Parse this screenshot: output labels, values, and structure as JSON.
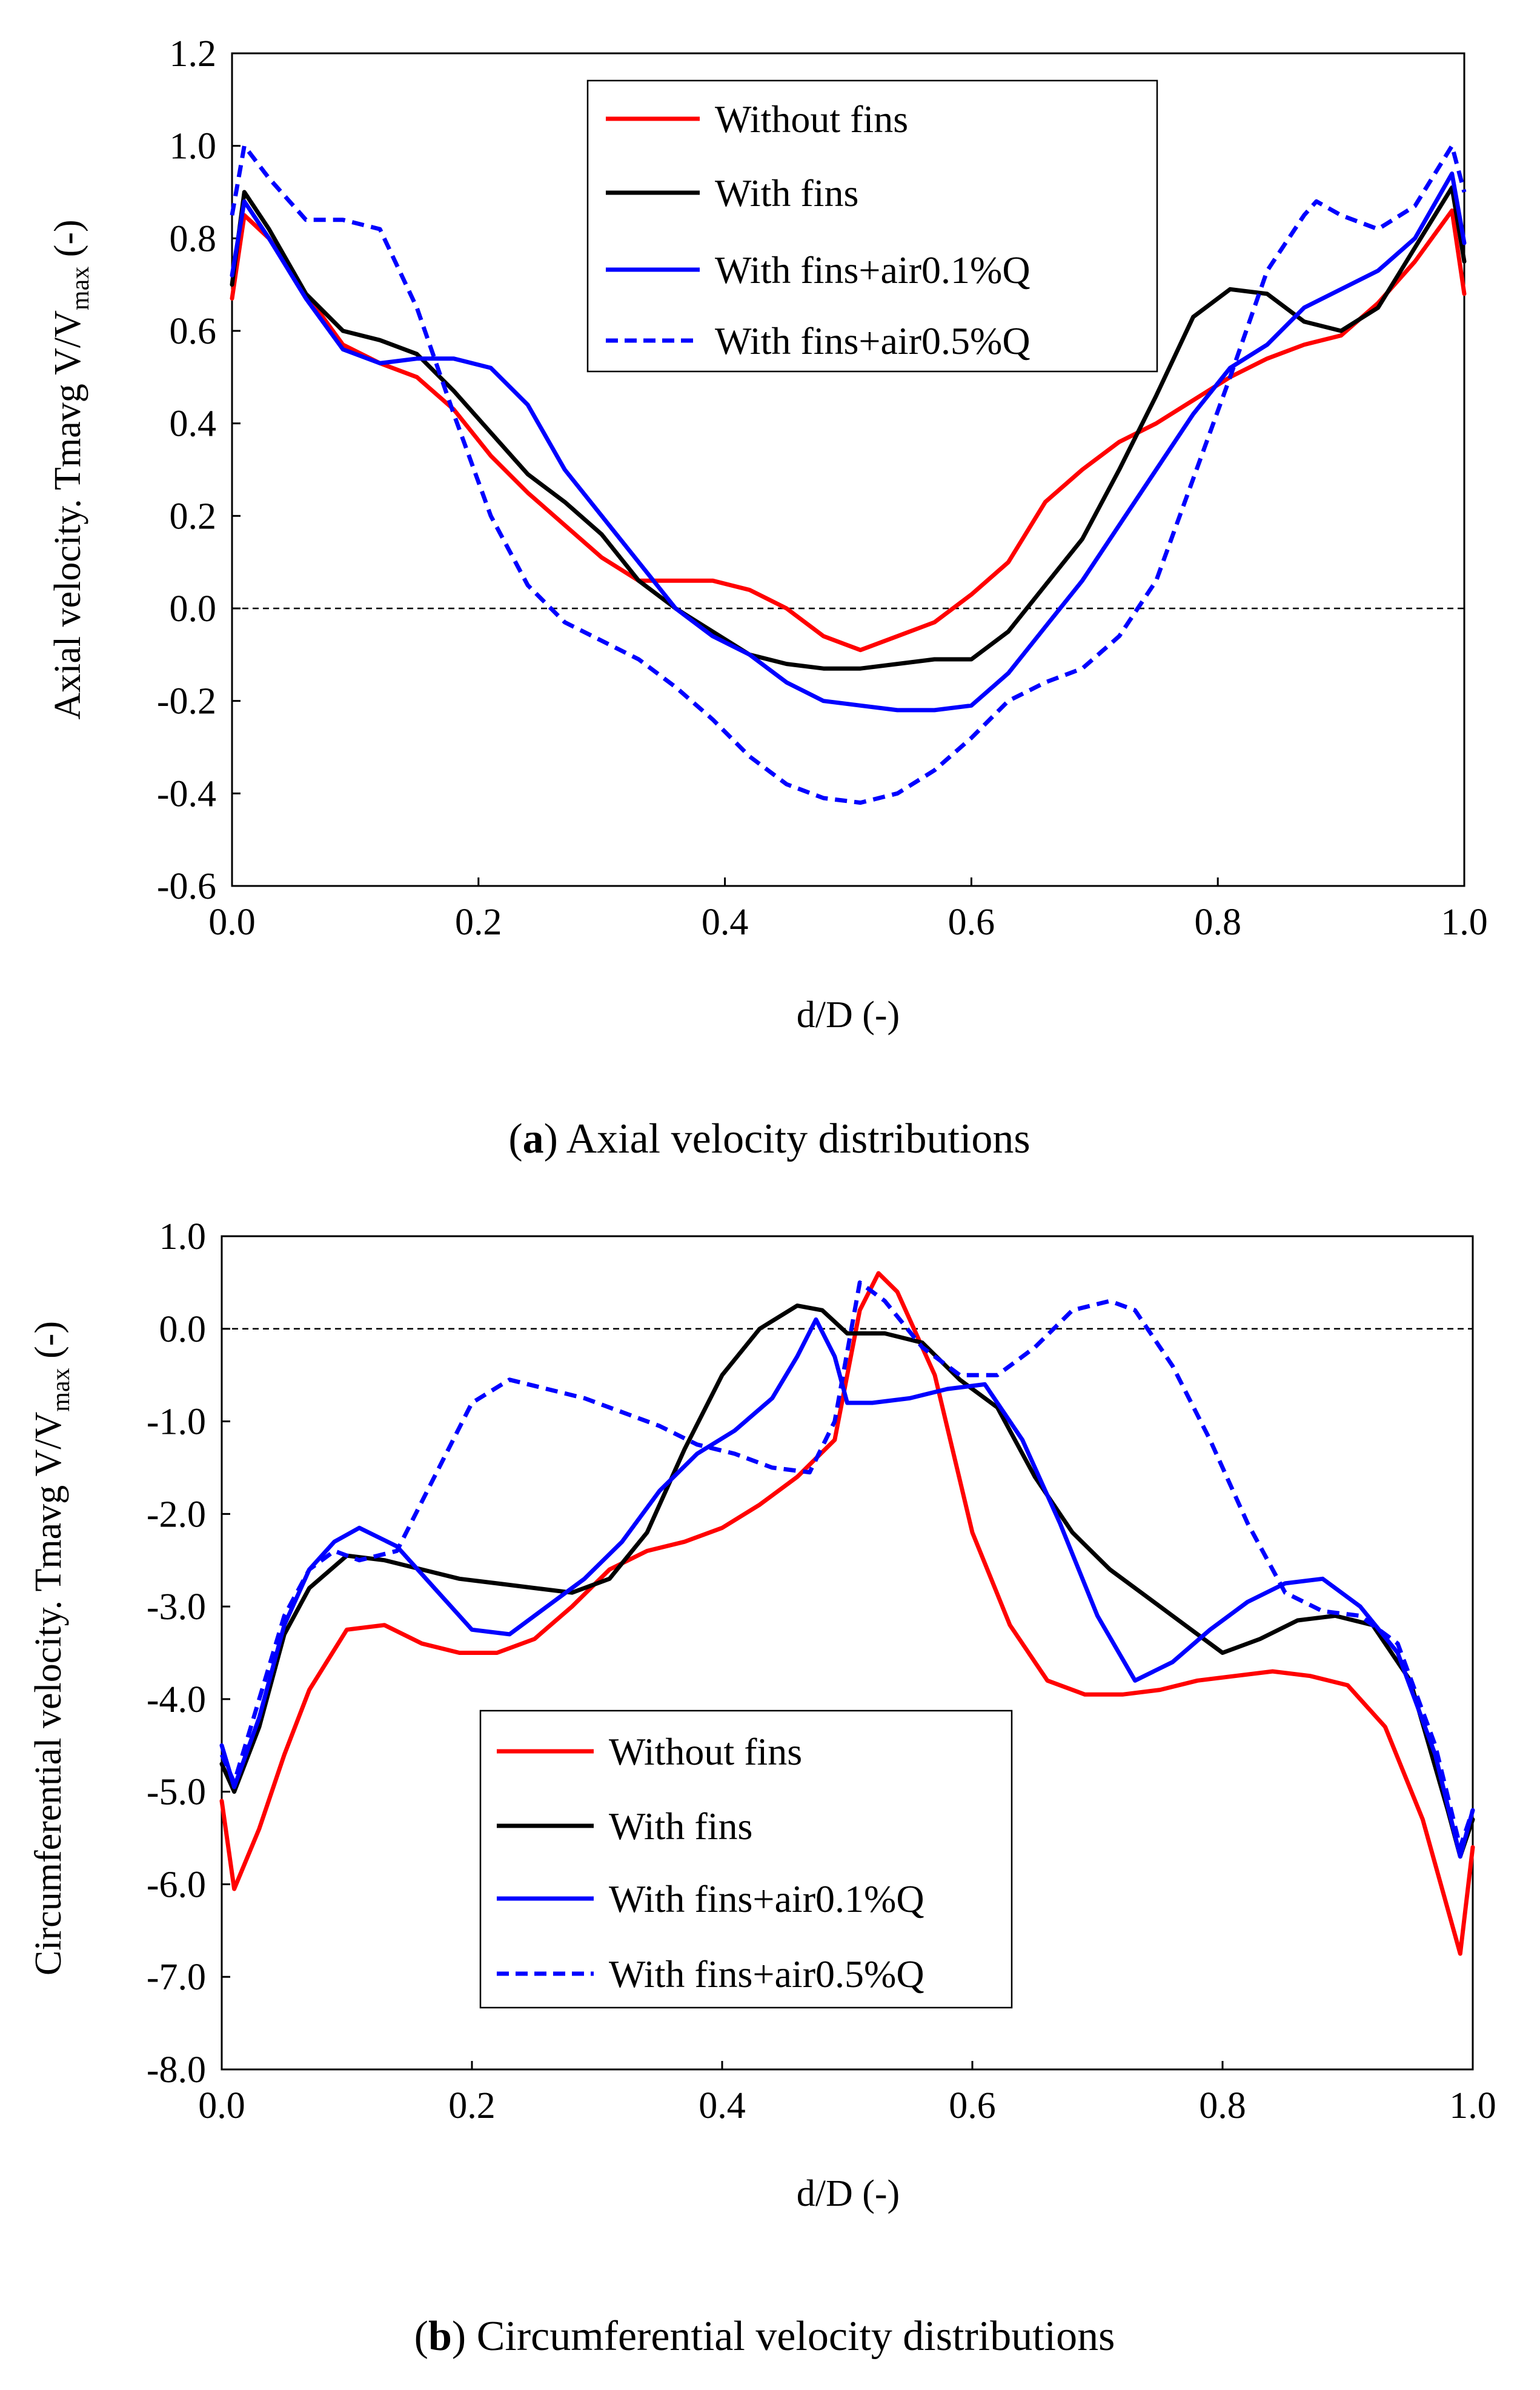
{
  "chart_data": [
    {
      "type": "line",
      "panel": "a",
      "caption": {
        "letter": "a",
        "text": " Axial velocity distributions"
      },
      "xlabel": "d/D (-)",
      "ylabel": "Axial velocity. Tmavg V/V",
      "ylabel_sub": "max",
      "ylabel_tail": " (-)",
      "xlim": [
        0.0,
        1.0
      ],
      "ylim": [
        -0.6,
        1.2
      ],
      "xticks": [
        "0.0",
        "0.2",
        "0.4",
        "0.6",
        "0.8",
        "1.0"
      ],
      "yticks": [
        "-0.6",
        "-0.4",
        "-0.2",
        "0.0",
        "0.2",
        "0.4",
        "0.6",
        "0.8",
        "1.0",
        "1.2"
      ],
      "reference_line": 0.0,
      "legend_position": "top-center",
      "series": [
        {
          "name": "Without fins",
          "color": "#ff0000",
          "style": "solid",
          "x": [
            0.0,
            0.01,
            0.03,
            0.06,
            0.09,
            0.12,
            0.15,
            0.18,
            0.21,
            0.24,
            0.27,
            0.3,
            0.33,
            0.36,
            0.39,
            0.42,
            0.45,
            0.48,
            0.51,
            0.54,
            0.57,
            0.6,
            0.63,
            0.66,
            0.69,
            0.72,
            0.75,
            0.78,
            0.81,
            0.84,
            0.87,
            0.9,
            0.93,
            0.96,
            0.99,
            1.0
          ],
          "y": [
            0.67,
            0.85,
            0.8,
            0.68,
            0.57,
            0.53,
            0.5,
            0.43,
            0.33,
            0.25,
            0.18,
            0.11,
            0.06,
            0.06,
            0.06,
            0.04,
            0.0,
            -0.06,
            -0.09,
            -0.06,
            -0.03,
            0.03,
            0.1,
            0.23,
            0.3,
            0.36,
            0.4,
            0.45,
            0.5,
            0.54,
            0.57,
            0.59,
            0.66,
            0.75,
            0.86,
            0.68
          ]
        },
        {
          "name": "With fins",
          "color": "#000000",
          "style": "solid",
          "x": [
            0.0,
            0.01,
            0.03,
            0.06,
            0.09,
            0.12,
            0.15,
            0.18,
            0.21,
            0.24,
            0.27,
            0.3,
            0.33,
            0.36,
            0.39,
            0.42,
            0.45,
            0.48,
            0.51,
            0.54,
            0.57,
            0.6,
            0.63,
            0.66,
            0.69,
            0.72,
            0.75,
            0.78,
            0.81,
            0.84,
            0.87,
            0.9,
            0.93,
            0.96,
            0.99,
            1.0
          ],
          "y": [
            0.7,
            0.9,
            0.82,
            0.68,
            0.6,
            0.58,
            0.55,
            0.47,
            0.38,
            0.29,
            0.23,
            0.16,
            0.06,
            0.0,
            -0.05,
            -0.1,
            -0.12,
            -0.13,
            -0.13,
            -0.12,
            -0.11,
            -0.11,
            -0.05,
            0.05,
            0.15,
            0.3,
            0.46,
            0.63,
            0.69,
            0.68,
            0.62,
            0.6,
            0.65,
            0.78,
            0.91,
            0.75
          ]
        },
        {
          "name": "With fins+air0.1%Q",
          "color": "#0000ff",
          "style": "solid",
          "x": [
            0.0,
            0.01,
            0.03,
            0.06,
            0.09,
            0.12,
            0.15,
            0.18,
            0.21,
            0.24,
            0.27,
            0.3,
            0.33,
            0.36,
            0.39,
            0.42,
            0.45,
            0.48,
            0.51,
            0.54,
            0.57,
            0.6,
            0.63,
            0.66,
            0.69,
            0.72,
            0.75,
            0.78,
            0.81,
            0.84,
            0.87,
            0.9,
            0.93,
            0.96,
            0.99,
            1.0
          ],
          "y": [
            0.72,
            0.88,
            0.8,
            0.67,
            0.56,
            0.53,
            0.54,
            0.54,
            0.52,
            0.44,
            0.3,
            0.2,
            0.1,
            0.0,
            -0.06,
            -0.1,
            -0.16,
            -0.2,
            -0.21,
            -0.22,
            -0.22,
            -0.21,
            -0.14,
            -0.04,
            0.06,
            0.18,
            0.3,
            0.42,
            0.52,
            0.57,
            0.65,
            0.69,
            0.73,
            0.8,
            0.94,
            0.79
          ]
        },
        {
          "name": "With fins+air0.5%Q",
          "color": "#0000ff",
          "style": "dashed",
          "x": [
            0.0,
            0.01,
            0.03,
            0.06,
            0.09,
            0.12,
            0.15,
            0.18,
            0.21,
            0.24,
            0.27,
            0.3,
            0.33,
            0.36,
            0.39,
            0.42,
            0.45,
            0.48,
            0.51,
            0.54,
            0.57,
            0.6,
            0.63,
            0.66,
            0.69,
            0.72,
            0.75,
            0.78,
            0.81,
            0.84,
            0.87,
            0.88,
            0.9,
            0.93,
            0.96,
            0.99,
            1.0
          ],
          "y": [
            0.85,
            1.0,
            0.93,
            0.84,
            0.84,
            0.82,
            0.65,
            0.42,
            0.2,
            0.05,
            -0.03,
            -0.07,
            -0.11,
            -0.17,
            -0.24,
            -0.32,
            -0.38,
            -0.41,
            -0.42,
            -0.4,
            -0.35,
            -0.28,
            -0.2,
            -0.16,
            -0.13,
            -0.06,
            0.06,
            0.28,
            0.5,
            0.73,
            0.85,
            0.88,
            0.85,
            0.82,
            0.87,
            1.0,
            0.9
          ]
        }
      ]
    },
    {
      "type": "line",
      "panel": "b",
      "caption": {
        "letter": "b",
        "text": " Circumferential velocity distributions"
      },
      "xlabel": "d/D (-)",
      "ylabel": "Circumferential velocity. Tmavg V/V",
      "ylabel_sub": "max",
      "ylabel_tail": " (-)",
      "xlim": [
        0.0,
        1.0
      ],
      "ylim": [
        -8.0,
        1.0
      ],
      "xticks": [
        "0.0",
        "0.2",
        "0.4",
        "0.6",
        "0.8",
        "1.0"
      ],
      "yticks": [
        "-8.0",
        "-7.0",
        "-6.0",
        "-5.0",
        "-4.0",
        "-3.0",
        "-2.0",
        "-1.0",
        "0.0",
        "1.0"
      ],
      "reference_line": 0.0,
      "legend_position": "bottom-center",
      "series": [
        {
          "name": "Without fins",
          "color": "#ff0000",
          "style": "solid",
          "x": [
            0.0,
            0.01,
            0.03,
            0.05,
            0.07,
            0.1,
            0.13,
            0.16,
            0.19,
            0.22,
            0.25,
            0.28,
            0.31,
            0.34,
            0.37,
            0.4,
            0.43,
            0.46,
            0.49,
            0.51,
            0.525,
            0.54,
            0.57,
            0.6,
            0.63,
            0.66,
            0.69,
            0.72,
            0.75,
            0.78,
            0.81,
            0.84,
            0.87,
            0.9,
            0.93,
            0.96,
            0.99,
            1.0
          ],
          "y": [
            -5.1,
            -6.05,
            -5.4,
            -4.6,
            -3.9,
            -3.25,
            -3.2,
            -3.4,
            -3.5,
            -3.5,
            -3.35,
            -3.0,
            -2.6,
            -2.4,
            -2.3,
            -2.15,
            -1.9,
            -1.6,
            -1.2,
            0.2,
            0.6,
            0.4,
            -0.5,
            -2.2,
            -3.2,
            -3.8,
            -3.95,
            -3.95,
            -3.9,
            -3.8,
            -3.75,
            -3.7,
            -3.75,
            -3.85,
            -4.3,
            -5.3,
            -6.75,
            -5.6
          ]
        },
        {
          "name": "With fins",
          "color": "#000000",
          "style": "solid",
          "x": [
            0.0,
            0.01,
            0.03,
            0.05,
            0.07,
            0.1,
            0.13,
            0.16,
            0.19,
            0.22,
            0.25,
            0.28,
            0.31,
            0.34,
            0.37,
            0.4,
            0.43,
            0.46,
            0.48,
            0.5,
            0.53,
            0.56,
            0.59,
            0.62,
            0.65,
            0.68,
            0.71,
            0.74,
            0.77,
            0.8,
            0.83,
            0.86,
            0.89,
            0.92,
            0.95,
            0.98,
            0.99,
            1.0
          ],
          "y": [
            -4.7,
            -5.0,
            -4.3,
            -3.3,
            -2.8,
            -2.45,
            -2.5,
            -2.6,
            -2.7,
            -2.75,
            -2.8,
            -2.85,
            -2.7,
            -2.2,
            -1.3,
            -0.5,
            0.0,
            0.25,
            0.2,
            -0.05,
            -0.05,
            -0.15,
            -0.55,
            -0.85,
            -1.6,
            -2.2,
            -2.6,
            -2.9,
            -3.2,
            -3.5,
            -3.35,
            -3.15,
            -3.1,
            -3.2,
            -3.8,
            -5.2,
            -5.7,
            -5.3
          ]
        },
        {
          "name": "With fins+air0.1%Q",
          "color": "#0000ff",
          "style": "solid",
          "x": [
            0.0,
            0.01,
            0.03,
            0.05,
            0.07,
            0.09,
            0.11,
            0.14,
            0.17,
            0.2,
            0.23,
            0.26,
            0.29,
            0.32,
            0.35,
            0.38,
            0.41,
            0.44,
            0.46,
            0.475,
            0.49,
            0.5,
            0.52,
            0.55,
            0.58,
            0.61,
            0.64,
            0.67,
            0.7,
            0.73,
            0.76,
            0.79,
            0.82,
            0.85,
            0.88,
            0.91,
            0.94,
            0.97,
            0.99,
            1.0
          ],
          "y": [
            -4.5,
            -4.95,
            -4.2,
            -3.2,
            -2.6,
            -2.3,
            -2.15,
            -2.35,
            -2.8,
            -3.25,
            -3.3,
            -3.0,
            -2.7,
            -2.3,
            -1.75,
            -1.35,
            -1.1,
            -0.75,
            -0.3,
            0.1,
            -0.3,
            -0.8,
            -0.8,
            -0.75,
            -0.65,
            -0.6,
            -1.2,
            -2.1,
            -3.1,
            -3.8,
            -3.6,
            -3.25,
            -2.95,
            -2.75,
            -2.7,
            -3.0,
            -3.5,
            -4.6,
            -5.7,
            -5.2
          ]
        },
        {
          "name": "With fins+air0.5%Q",
          "color": "#0000ff",
          "style": "dashed",
          "x": [
            0.0,
            0.01,
            0.03,
            0.05,
            0.07,
            0.09,
            0.11,
            0.14,
            0.17,
            0.2,
            0.23,
            0.26,
            0.29,
            0.32,
            0.35,
            0.38,
            0.41,
            0.44,
            0.47,
            0.49,
            0.51,
            0.53,
            0.56,
            0.59,
            0.62,
            0.65,
            0.68,
            0.71,
            0.73,
            0.76,
            0.79,
            0.82,
            0.85,
            0.88,
            0.91,
            0.94,
            0.97,
            0.99,
            1.0
          ],
          "y": [
            -4.6,
            -4.9,
            -4.0,
            -3.1,
            -2.6,
            -2.4,
            -2.5,
            -2.4,
            -1.6,
            -0.8,
            -0.55,
            -0.65,
            -0.75,
            -0.9,
            -1.05,
            -1.25,
            -1.35,
            -1.5,
            -1.55,
            -1.0,
            0.5,
            0.3,
            -0.2,
            -0.5,
            -0.5,
            -0.2,
            0.2,
            0.3,
            0.2,
            -0.4,
            -1.2,
            -2.1,
            -2.85,
            -3.05,
            -3.1,
            -3.4,
            -4.5,
            -5.6,
            -5.2
          ]
        }
      ]
    }
  ]
}
